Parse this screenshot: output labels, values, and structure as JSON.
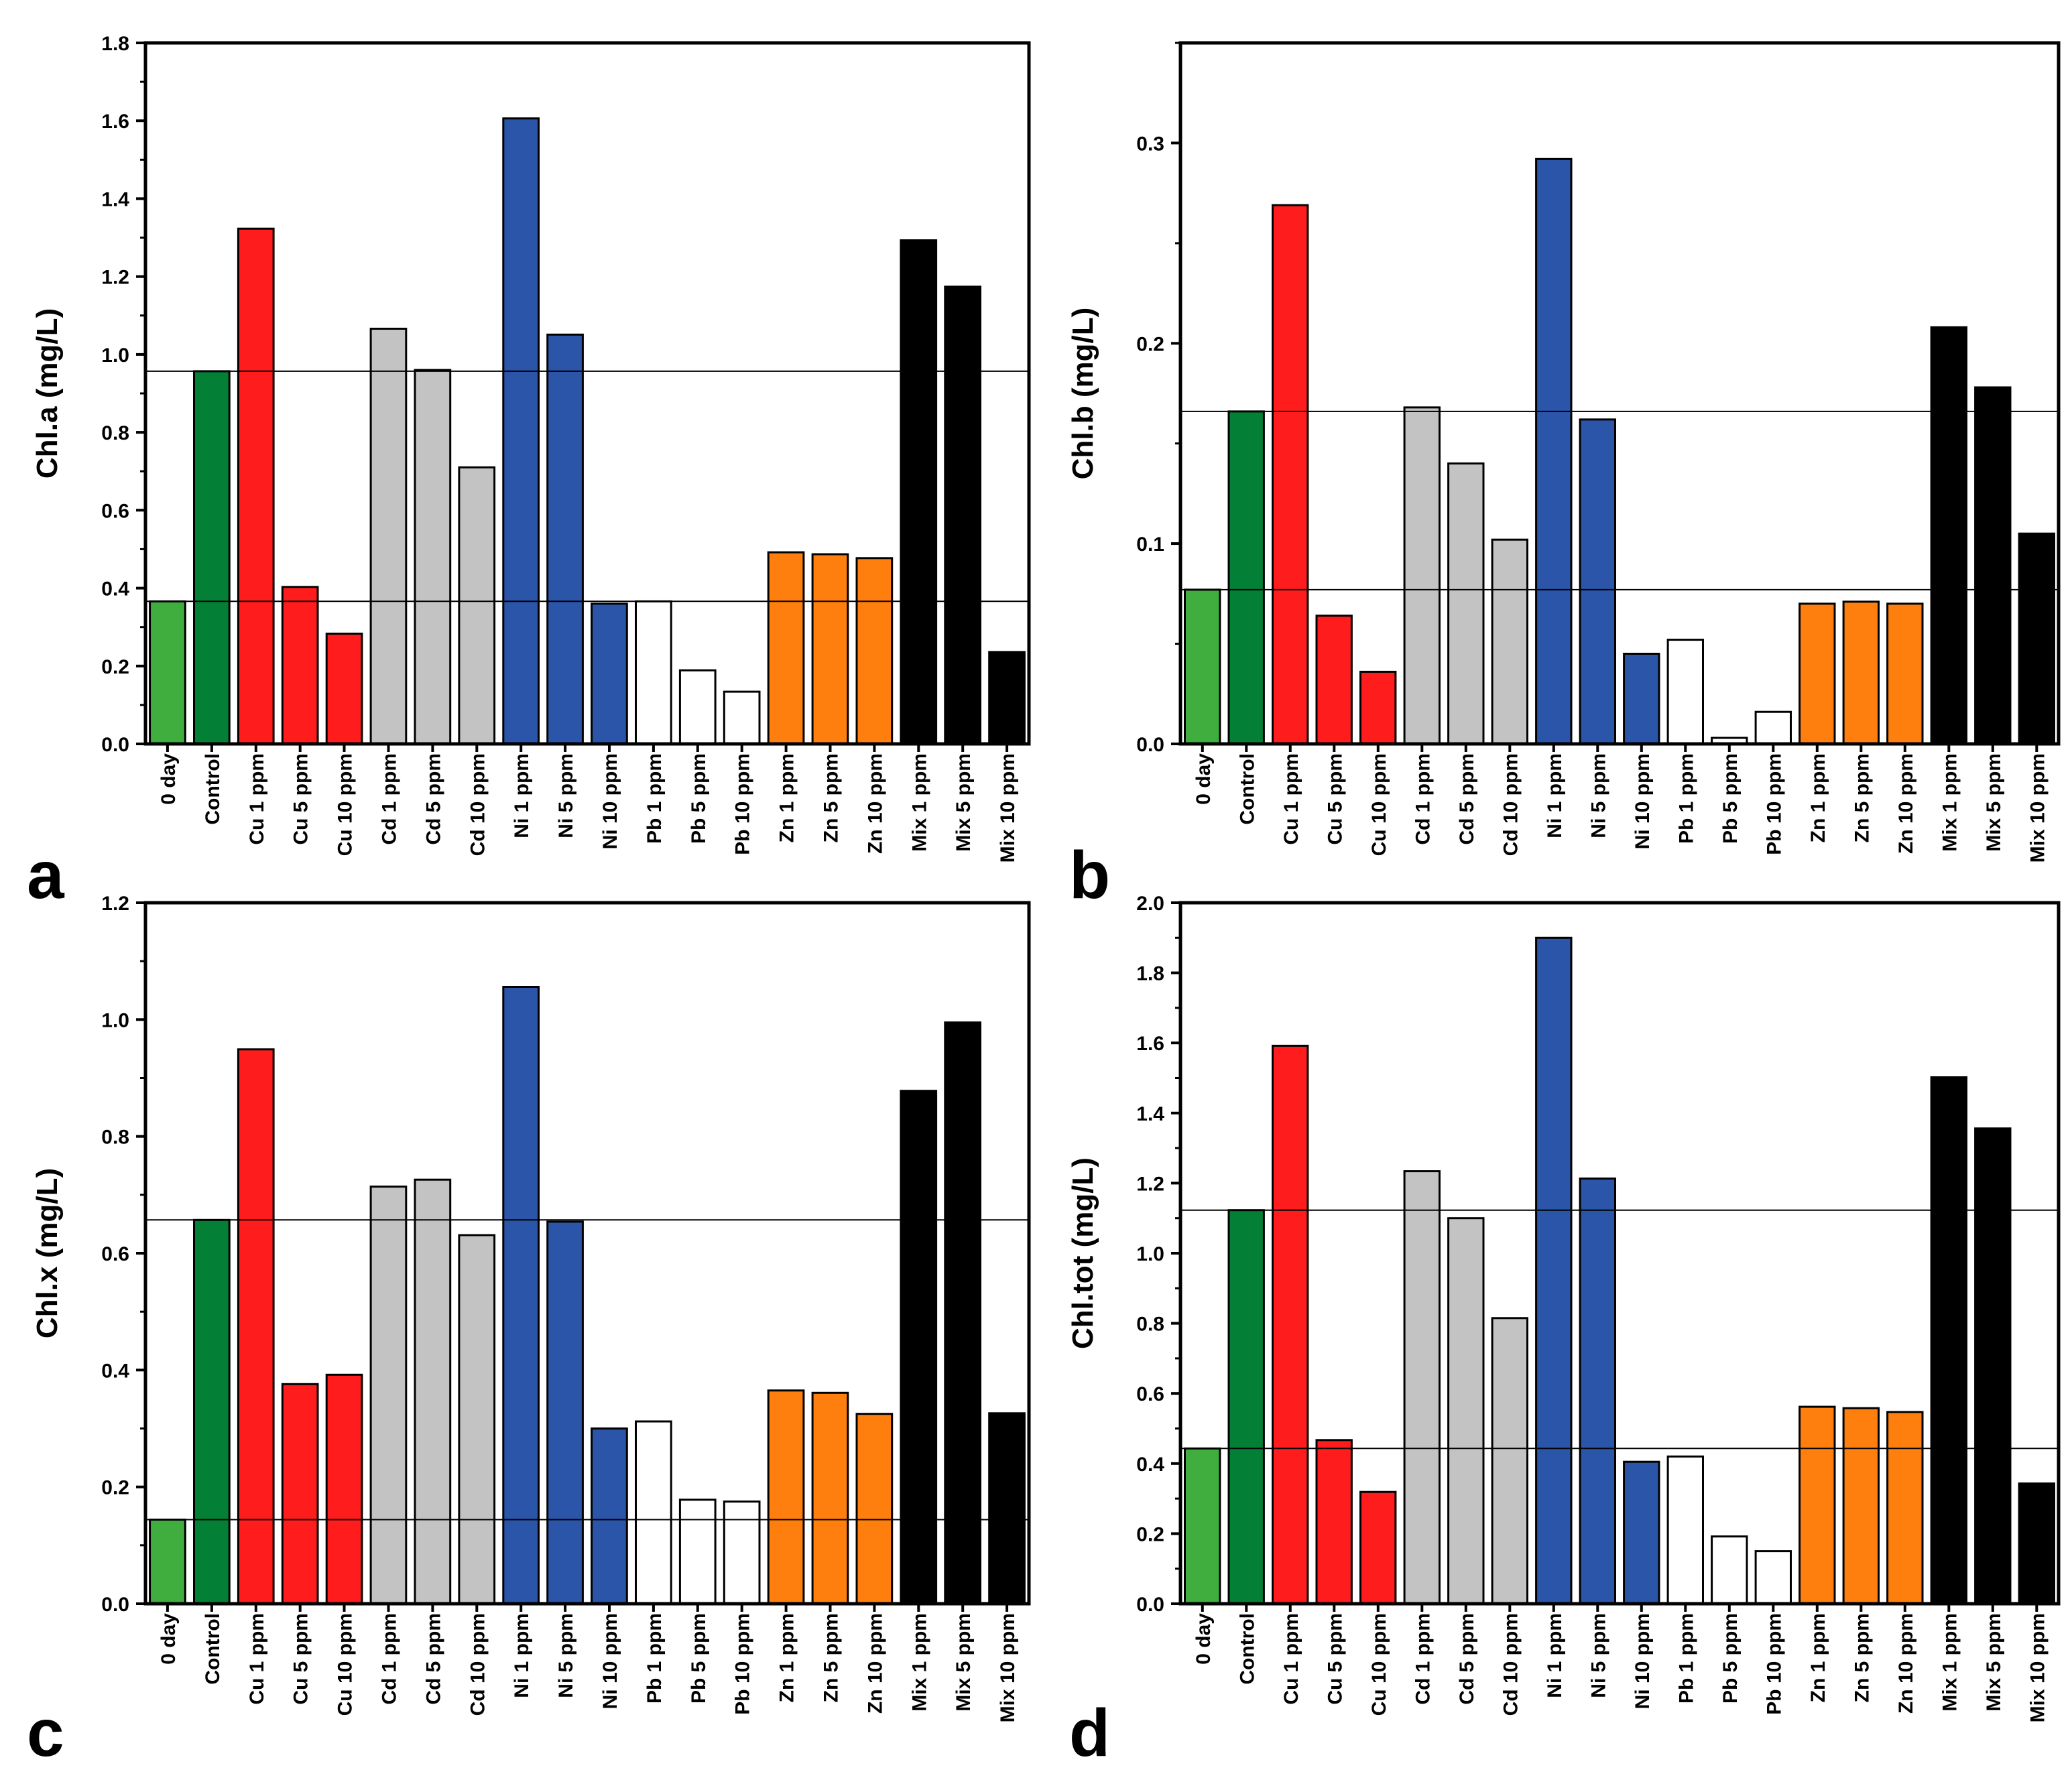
{
  "chart_data": [
    {
      "panel": "a",
      "type": "bar",
      "ylabel": "Chl.a (mg/L)",
      "ylim": [
        0,
        1.8
      ],
      "yticks": [
        0.0,
        0.2,
        0.4,
        0.6,
        0.8,
        1.0,
        1.2,
        1.4,
        1.6,
        1.8
      ],
      "ytick_labels": [
        "0.0",
        "0.2",
        "0.4",
        "0.6",
        "0.8",
        "1.0",
        "1.2",
        "1.4",
        "1.6",
        "1.8"
      ],
      "categories": [
        "0 day",
        "Control",
        "Cu 1 ppm",
        "Cu 5 ppm",
        "Cu 10 ppm",
        "Cd 1 ppm",
        "Cd 5 ppm",
        "Cd 10 ppm",
        "Ni 1 ppm",
        "Ni 5 ppm",
        "Ni 10 ppm",
        "Pb 1 ppm",
        "Pb 5 ppm",
        "Pb 10 ppm",
        "Zn 1 ppm",
        "Zn 5 ppm",
        "Zn 10 ppm",
        "Mix 1 ppm",
        "Mix 5 ppm",
        "Mix 10 ppm"
      ],
      "values": [
        0.366,
        0.957,
        1.323,
        0.403,
        0.283,
        1.066,
        0.96,
        0.71,
        1.606,
        1.051,
        0.36,
        0.366,
        0.189,
        0.134,
        0.492,
        0.487,
        0.477,
        1.293,
        1.174,
        0.236
      ],
      "reference_lines": [
        0.957,
        0.366
      ]
    },
    {
      "panel": "b",
      "type": "bar",
      "ylabel": "Chl.b (mg/L)",
      "ylim": [
        0,
        0.35
      ],
      "yticks": [
        0.0,
        0.1,
        0.2,
        0.3
      ],
      "ytick_labels": [
        "0.0",
        "0.1",
        "0.2",
        "0.3"
      ],
      "categories": [
        "0 day",
        "Control",
        "Cu 1 ppm",
        "Cu 5 ppm",
        "Cu 10 ppm",
        "Cd 1 ppm",
        "Cd 5 ppm",
        "Cd 10 ppm",
        "Ni 1 ppm",
        "Ni 5 ppm",
        "Ni 10 ppm",
        "Pb 1 ppm",
        "Pb 5 ppm",
        "Pb 10 ppm",
        "Zn 1 ppm",
        "Zn 5 ppm",
        "Zn 10 ppm",
        "Mix 1 ppm",
        "Mix 5 ppm",
        "Mix 10 ppm"
      ],
      "values": [
        0.077,
        0.166,
        0.269,
        0.064,
        0.036,
        0.168,
        0.14,
        0.102,
        0.292,
        0.162,
        0.045,
        0.052,
        0.003,
        0.016,
        0.07,
        0.071,
        0.07,
        0.208,
        0.178,
        0.105
      ],
      "reference_lines": [
        0.166,
        0.077
      ]
    },
    {
      "panel": "c",
      "type": "bar",
      "ylabel": "Chl.x (mg/L)",
      "ylim": [
        0,
        1.2
      ],
      "yticks": [
        0.0,
        0.2,
        0.4,
        0.6,
        0.8,
        1.0,
        1.2
      ],
      "ytick_labels": [
        "0.0",
        "0.2",
        "0.4",
        "0.6",
        "0.8",
        "1.0",
        "1.2"
      ],
      "categories": [
        "0 day",
        "Control",
        "Cu 1 ppm",
        "Cu 5 ppm",
        "Cu 10 ppm",
        "Cd 1 ppm",
        "Cd 5 ppm",
        "Cd 10 ppm",
        "Ni 1 ppm",
        "Ni 5 ppm",
        "Ni 10 ppm",
        "Pb 1 ppm",
        "Pb 5 ppm",
        "Pb 10 ppm",
        "Zn 1 ppm",
        "Zn 5 ppm",
        "Zn 10 ppm",
        "Mix 1 ppm",
        "Mix 5 ppm",
        "Mix 10 ppm"
      ],
      "values": [
        0.144,
        0.657,
        0.949,
        0.376,
        0.392,
        0.714,
        0.726,
        0.631,
        1.056,
        0.654,
        0.3,
        0.312,
        0.178,
        0.175,
        0.365,
        0.361,
        0.325,
        0.878,
        0.995,
        0.326
      ],
      "reference_lines": [
        0.657,
        0.144
      ]
    },
    {
      "panel": "d",
      "type": "bar",
      "ylabel": "Chl.tot (mg/L)",
      "ylim": [
        0,
        2.0
      ],
      "yticks": [
        0.0,
        0.2,
        0.4,
        0.6,
        0.8,
        1.0,
        1.2,
        1.4,
        1.6,
        1.8,
        2.0
      ],
      "ytick_labels": [
        "0.0",
        "0.2",
        "0.4",
        "0.6",
        "0.8",
        "1.0",
        "1.2",
        "1.4",
        "1.6",
        "1.8",
        "2.0"
      ],
      "categories": [
        "0 day",
        "Control",
        "Cu 1 ppm",
        "Cu 5 ppm",
        "Cu 10 ppm",
        "Cd 1 ppm",
        "Cd 5 ppm",
        "Cd 10 ppm",
        "Ni 1 ppm",
        "Ni 5 ppm",
        "Ni 10 ppm",
        "Pb 1 ppm",
        "Pb 5 ppm",
        "Pb 10 ppm",
        "Zn 1 ppm",
        "Zn 5 ppm",
        "Zn 10 ppm",
        "Mix 1 ppm",
        "Mix 5 ppm",
        "Mix 10 ppm"
      ],
      "values": [
        0.443,
        1.123,
        1.592,
        0.467,
        0.319,
        1.234,
        1.1,
        0.815,
        1.9,
        1.213,
        0.405,
        0.42,
        0.192,
        0.15,
        0.562,
        0.558,
        0.547,
        1.502,
        1.356,
        0.343
      ],
      "reference_lines": [
        1.123,
        0.443
      ]
    }
  ],
  "bar_colors": [
    "#3fae3f",
    "#048036",
    "#fe1c1c",
    "#fe1c1c",
    "#fe1c1c",
    "#c3c3c3",
    "#c3c3c3",
    "#c3c3c3",
    "#2b55a9",
    "#2b55a9",
    "#2b55a9",
    "#ffffff",
    "#ffffff",
    "#ffffff",
    "#ff7f0e",
    "#ff7f0e",
    "#ff7f0e",
    "#000000",
    "#000000",
    "#000000"
  ]
}
